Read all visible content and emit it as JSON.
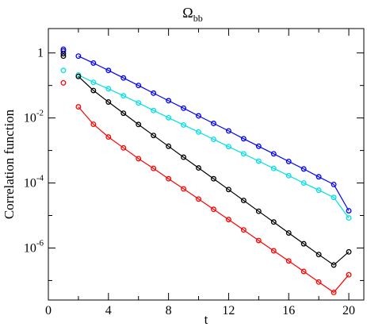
{
  "chart_data": {
    "type": "line",
    "title": "Ω",
    "title_subscript": "bb",
    "xlabel": "t",
    "ylabel": "Correlation function",
    "xlim": [
      0,
      21
    ],
    "ylim_log10": [
      -7.6,
      0.75
    ],
    "y_scale": "log",
    "grid": false,
    "legend": "none",
    "x_ticks": [
      0,
      4,
      8,
      12,
      16,
      20
    ],
    "y_ticks": [
      {
        "base": "1",
        "exp": ""
      },
      {
        "base": "10",
        "exp": "-2"
      },
      {
        "base": "10",
        "exp": "-4"
      },
      {
        "base": "10",
        "exp": "-6"
      }
    ],
    "series": [
      {
        "color": "#0000ff",
        "points": [
          [
            1,
            1.3
          ],
          [
            1,
            1.15
          ],
          [
            2,
            0.8
          ],
          [
            3,
            0.49
          ],
          [
            4,
            0.29
          ],
          [
            5,
            0.17
          ],
          [
            6,
            0.1
          ],
          [
            7,
            0.058
          ],
          [
            8,
            0.034
          ],
          [
            9,
            0.02
          ],
          [
            10,
            0.0116
          ],
          [
            11,
            0.0068
          ],
          [
            12,
            0.004
          ],
          [
            13,
            0.0023
          ],
          [
            14,
            0.00135
          ],
          [
            15,
            0.00079
          ],
          [
            16,
            0.00046
          ],
          [
            17,
            0.00027
          ],
          [
            18,
            0.000155
          ],
          [
            19,
            9e-05
          ],
          [
            20,
            1.4e-05
          ]
        ],
        "line_from_index": 2
      },
      {
        "color": "#00e0e6",
        "points": [
          [
            1,
            0.29
          ],
          [
            2,
            0.21
          ],
          [
            3,
            0.125
          ],
          [
            4,
            0.079
          ],
          [
            5,
            0.048
          ],
          [
            6,
            0.029
          ],
          [
            7,
            0.017
          ],
          [
            8,
            0.0102
          ],
          [
            9,
            0.0061
          ],
          [
            10,
            0.0037
          ],
          [
            11,
            0.0022
          ],
          [
            12,
            0.00132
          ],
          [
            13,
            0.00079
          ],
          [
            14,
            0.00047
          ],
          [
            15,
            0.00028
          ],
          [
            16,
            0.000168
          ],
          [
            17,
            0.0001
          ],
          [
            18,
            6e-05
          ],
          [
            19,
            3.6e-05
          ],
          [
            20,
            8.4e-06
          ]
        ],
        "line_from_index": 1
      },
      {
        "color": "#000000",
        "points": [
          [
            1,
            0.95
          ],
          [
            1,
            0.8
          ],
          [
            2,
            0.19
          ],
          [
            3,
            0.07
          ],
          [
            4,
            0.031
          ],
          [
            5,
            0.014
          ],
          [
            6,
            0.0063
          ],
          [
            7,
            0.0029
          ],
          [
            8,
            0.00135
          ],
          [
            9,
            0.00062
          ],
          [
            10,
            0.00029
          ],
          [
            11,
            0.000135
          ],
          [
            12,
            6.3e-05
          ],
          [
            13,
            2.9e-05
          ],
          [
            14,
            1.35e-05
          ],
          [
            15,
            6.3e-06
          ],
          [
            16,
            2.9e-06
          ],
          [
            17,
            1.35e-06
          ],
          [
            18,
            6.3e-07
          ],
          [
            19,
            3e-07
          ],
          [
            20,
            7.6e-07
          ]
        ],
        "line_from_index": 2
      },
      {
        "color": "#ff0000",
        "points": [
          [
            1,
            0.12
          ],
          [
            2,
            0.022
          ],
          [
            3,
            0.0064
          ],
          [
            4,
            0.0026
          ],
          [
            5,
            0.0012
          ],
          [
            6,
            0.00056
          ],
          [
            7,
            0.00028
          ],
          [
            8,
            0.000135
          ],
          [
            9,
            6.6e-05
          ],
          [
            10,
            3.2e-05
          ],
          [
            11,
            1.55e-05
          ],
          [
            12,
            7.5e-06
          ],
          [
            13,
            3.6e-06
          ],
          [
            14,
            1.7e-06
          ],
          [
            15,
            8.2e-07
          ],
          [
            16,
            4e-07
          ],
          [
            17,
            1.9e-07
          ],
          [
            18,
            9e-08
          ],
          [
            19,
            4.3e-08
          ],
          [
            20,
            1.5e-07
          ]
        ],
        "line_from_index": 1
      }
    ]
  }
}
